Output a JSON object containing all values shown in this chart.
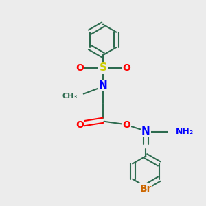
{
  "bg_color": "#ececec",
  "bond_color": "#2d6b4f",
  "colors": {
    "N": "#0000ff",
    "O": "#ff0000",
    "S": "#cccc00",
    "Br": "#cc6600",
    "C": "#2d6b4f"
  }
}
